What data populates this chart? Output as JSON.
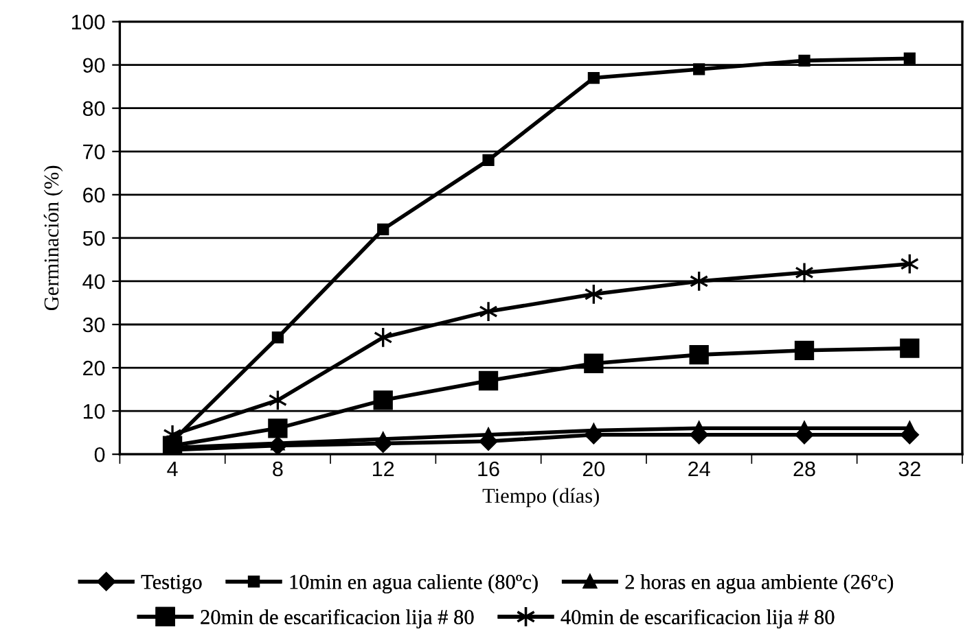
{
  "chart_data": {
    "type": "line",
    "xlabel": "Tiempo (días)",
    "ylabel": "Germinación (%)",
    "categories": [
      "4",
      "8",
      "12",
      "16",
      "20",
      "24",
      "28",
      "32"
    ],
    "ylim": [
      0,
      100
    ],
    "yticks": [
      0,
      10,
      20,
      30,
      40,
      50,
      60,
      70,
      80,
      90,
      100
    ],
    "grid": "y",
    "legend": "bottom",
    "line_style": "solid",
    "series": [
      {
        "name": "Testigo",
        "color": "#000000",
        "marker": "diamond",
        "values": [
          1,
          2,
          2.5,
          3,
          4.5,
          4.5,
          4.5,
          4.5
        ]
      },
      {
        "name": "10min en agua caliente (80ºc)",
        "color": "#000000",
        "marker": "square",
        "values": [
          3,
          27,
          52,
          68,
          87,
          89,
          91,
          91.5
        ]
      },
      {
        "name": "2 horas en agua ambiente (26ºc)",
        "color": "#000000",
        "marker": "triangle",
        "values": [
          1.5,
          2.5,
          3.5,
          4.5,
          5.5,
          6,
          6,
          6
        ]
      },
      {
        "name": "20min de escarificacion lija # 80",
        "color": "#000000",
        "marker": "square",
        "values": [
          2,
          6,
          12.5,
          17,
          21,
          23,
          24,
          24.5
        ]
      },
      {
        "name": "40min de escarificacion lija # 80",
        "color": "#000000",
        "marker": "cross",
        "values": [
          4.5,
          12.5,
          27,
          33,
          37,
          40,
          42,
          44
        ]
      }
    ]
  }
}
